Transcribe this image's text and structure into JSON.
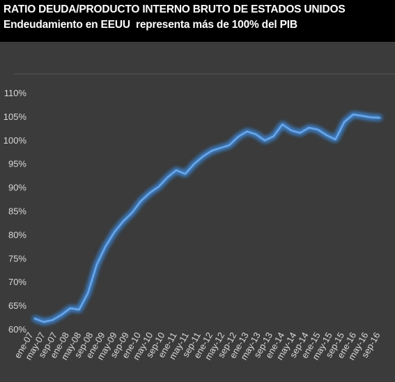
{
  "header": {
    "title": "RATIO DEUDA/PRODUCTO INTERNO BRUTO DE ESTADOS UNIDOS",
    "subtitle": "Endeudamiento en EEUU  representa más de 100% del PIB"
  },
  "colors": {
    "background": "#000000",
    "plot_background": "#3b3b3b",
    "line": "#6aa6e8",
    "glow": "#3e86d6",
    "tick_text": "#d9d9d9",
    "grid": "#4a4a4a"
  },
  "chart_data": {
    "type": "line",
    "title": "",
    "xlabel": "",
    "ylabel": "",
    "ylim": [
      59.5,
      111
    ],
    "y_ticks": [
      60,
      65,
      70,
      75,
      80,
      85,
      90,
      95,
      100,
      105,
      110
    ],
    "y_tick_labels": [
      "60%",
      "65%",
      "70%",
      "75%",
      "80%",
      "85%",
      "90%",
      "95%",
      "100%",
      "105%",
      "110%"
    ],
    "x_tick_labels": [
      "ene-07",
      "may-07",
      "sep-07",
      "ene-08",
      "may-08",
      "sep-08",
      "ene-09",
      "may-09",
      "sep-09",
      "ene-10",
      "may-10",
      "sep-10",
      "ene-11",
      "may-11",
      "sep-11",
      "ene-12",
      "may-12",
      "sep-12",
      "ene-13",
      "may-13",
      "sep-13",
      "ene-14",
      "may-14",
      "sep-14",
      "ene-15",
      "may-15",
      "sep-15",
      "ene-16",
      "may-16",
      "sep-16"
    ],
    "grid": false,
    "legend": "none",
    "series": [
      {
        "values": [
          62.2,
          61.5,
          61.9,
          63.0,
          64.4,
          64.1,
          67.6,
          73.6,
          77.5,
          80.5,
          82.8,
          84.6,
          87.1,
          88.8,
          90.1,
          92.1,
          93.6,
          92.8,
          94.9,
          96.5,
          97.7,
          98.3,
          98.9,
          100.7,
          101.8,
          101.2,
          99.9,
          100.8,
          103.3,
          102.0,
          101.5,
          102.6,
          102.2,
          101.0,
          100.1,
          103.8,
          105.4,
          105.1,
          104.8,
          104.7
        ]
      }
    ]
  }
}
